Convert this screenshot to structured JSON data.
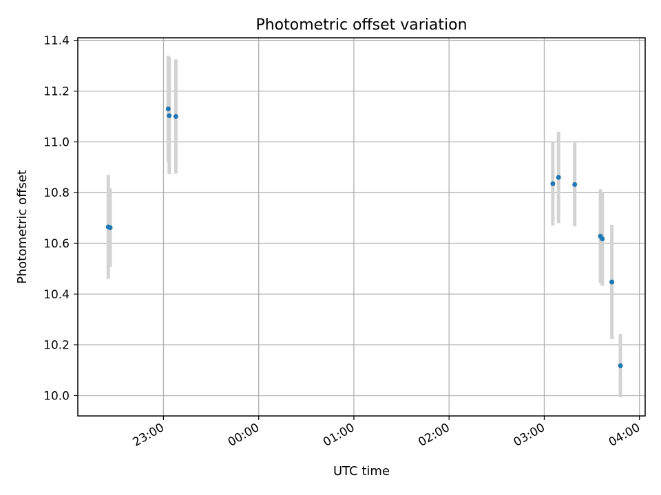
{
  "chart_data": {
    "type": "scatter",
    "title": "Photometric offset variation",
    "xlabel": "UTC time",
    "ylabel": "Photometric offset",
    "x_unit": "hours",
    "x_ticks": [
      {
        "value": 23.0,
        "label": "23:00"
      },
      {
        "value": 24.0,
        "label": "00:00"
      },
      {
        "value": 25.0,
        "label": "01:00"
      },
      {
        "value": 26.0,
        "label": "02:00"
      },
      {
        "value": 27.0,
        "label": "03:00"
      },
      {
        "value": 28.0,
        "label": "04:00"
      }
    ],
    "y_ticks": [
      10.0,
      10.2,
      10.4,
      10.6,
      10.8,
      11.0,
      11.2,
      11.4
    ],
    "xlim": [
      22.1,
      28.06
    ],
    "ylim": [
      9.92,
      11.41
    ],
    "grid": true,
    "points": [
      {
        "x": 22.42,
        "y": 10.665,
        "err": 0.205
      },
      {
        "x": 22.44,
        "y": 10.662,
        "err": 0.155
      },
      {
        "x": 23.05,
        "y": 11.13,
        "err": 0.21
      },
      {
        "x": 23.06,
        "y": 11.103,
        "err": 0.23
      },
      {
        "x": 23.13,
        "y": 11.1,
        "err": 0.225
      },
      {
        "x": 27.09,
        "y": 10.835,
        "err": 0.165
      },
      {
        "x": 27.15,
        "y": 10.86,
        "err": 0.18
      },
      {
        "x": 27.32,
        "y": 10.832,
        "err": 0.165
      },
      {
        "x": 27.59,
        "y": 10.628,
        "err": 0.185
      },
      {
        "x": 27.61,
        "y": 10.618,
        "err": 0.185
      },
      {
        "x": 27.71,
        "y": 10.448,
        "err": 0.225
      },
      {
        "x": 27.8,
        "y": 10.118,
        "err": 0.125
      }
    ],
    "colors": {
      "point": "#1f77b4",
      "errorbar": "#d3d3d3",
      "grid": "#b0b0b0",
      "axes": "#000000"
    }
  }
}
